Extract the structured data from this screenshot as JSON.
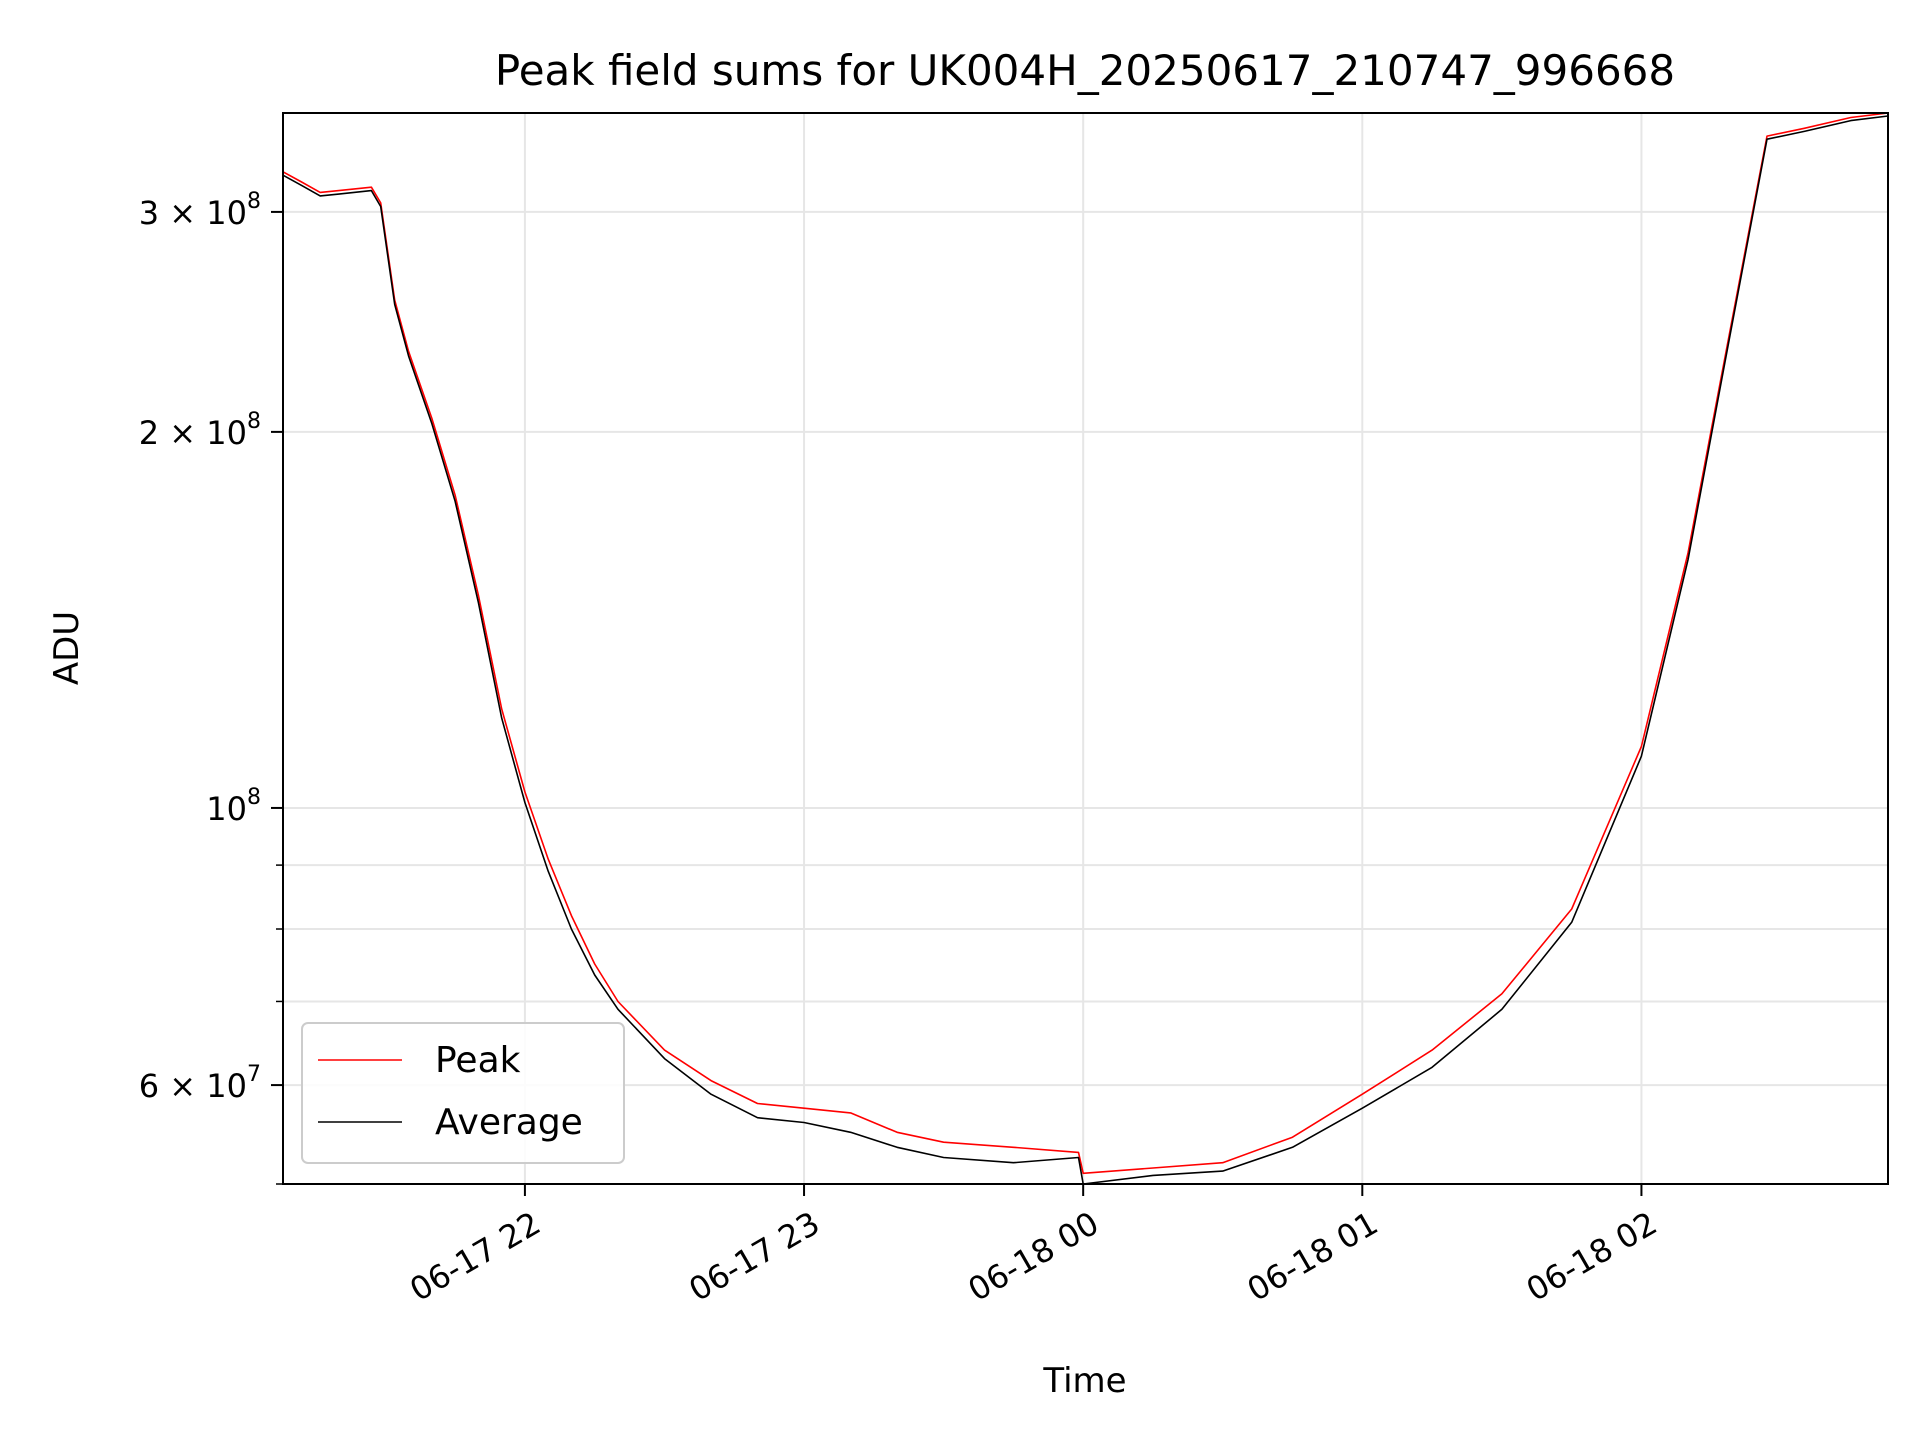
{
  "chart_data": {
    "type": "line",
    "title": "Peak field sums for UK004H_20250617_210747_996668",
    "xlabel": "Time",
    "ylabel": "ADU",
    "yscale": "log",
    "grid": true,
    "legend_position": "lower-left",
    "x_domain": [
      "2025-06-17T21:08",
      "2025-06-18T02:53"
    ],
    "ylim": [
      50000000,
      360000000
    ],
    "x_ticks": [
      {
        "t": "2025-06-17T22:00",
        "label": "06-17 22"
      },
      {
        "t": "2025-06-17T23:00",
        "label": "06-17 23"
      },
      {
        "t": "2025-06-18T00:00",
        "label": "06-18 00"
      },
      {
        "t": "2025-06-18T01:00",
        "label": "06-18 01"
      },
      {
        "t": "2025-06-18T02:00",
        "label": "06-18 02"
      }
    ],
    "y_ticks": [
      {
        "value": 300000000,
        "base": "3 × 10",
        "exp": "8"
      },
      {
        "value": 200000000,
        "base": "2 × 10",
        "exp": "8"
      },
      {
        "value": 100000000,
        "base": "10",
        "exp": "8"
      },
      {
        "value": 60000000,
        "base": "6 × 10",
        "exp": "7"
      }
    ],
    "y_minor_ticks": [
      50000000,
      70000000,
      80000000,
      90000000
    ],
    "series": [
      {
        "name": "Peak",
        "color": "#ff0000",
        "points": [
          [
            "2025-06-17T21:08",
            323000000
          ],
          [
            "2025-06-17T21:12",
            317000000
          ],
          [
            "2025-06-17T21:16",
            311000000
          ],
          [
            "2025-06-17T21:20",
            312000000
          ],
          [
            "2025-06-17T21:27",
            314000000
          ],
          [
            "2025-06-17T21:29",
            305000000
          ],
          [
            "2025-06-17T21:32",
            255000000
          ],
          [
            "2025-06-17T21:35",
            232000000
          ],
          [
            "2025-06-17T21:40",
            205000000
          ],
          [
            "2025-06-17T21:45",
            178000000
          ],
          [
            "2025-06-17T21:50",
            148000000
          ],
          [
            "2025-06-17T21:55",
            120000000
          ],
          [
            "2025-06-17T22:00",
            103000000
          ],
          [
            "2025-06-17T22:05",
            91000000
          ],
          [
            "2025-06-17T22:10",
            82000000
          ],
          [
            "2025-06-17T22:15",
            75000000
          ],
          [
            "2025-06-17T22:20",
            70000000
          ],
          [
            "2025-06-17T22:30",
            64000000
          ],
          [
            "2025-06-17T22:40",
            60500000
          ],
          [
            "2025-06-17T22:50",
            58000000
          ],
          [
            "2025-06-17T23:00",
            57500000
          ],
          [
            "2025-06-17T23:10",
            57000000
          ],
          [
            "2025-06-17T23:20",
            55000000
          ],
          [
            "2025-06-17T23:30",
            54000000
          ],
          [
            "2025-06-17T23:45",
            53500000
          ],
          [
            "2025-06-17T23:59",
            53000000
          ],
          [
            "2025-06-18T00:00",
            51000000
          ],
          [
            "2025-06-18T00:15",
            51500000
          ],
          [
            "2025-06-18T00:30",
            52000000
          ],
          [
            "2025-06-18T00:45",
            54500000
          ],
          [
            "2025-06-18T01:00",
            59000000
          ],
          [
            "2025-06-18T01:15",
            64000000
          ],
          [
            "2025-06-18T01:30",
            71000000
          ],
          [
            "2025-06-18T01:45",
            83000000
          ],
          [
            "2025-06-18T02:00",
            112000000
          ],
          [
            "2025-06-18T02:10",
            160000000
          ],
          [
            "2025-06-18T02:18",
            230000000
          ],
          [
            "2025-06-18T02:27",
            345000000
          ],
          [
            "2025-06-18T02:35",
            350000000
          ],
          [
            "2025-06-18T02:45",
            357000000
          ],
          [
            "2025-06-18T02:53",
            360000000
          ]
        ]
      },
      {
        "name": "Average",
        "color": "#000000",
        "points": [
          [
            "2025-06-17T21:08",
            321000000
          ],
          [
            "2025-06-17T21:12",
            315000000
          ],
          [
            "2025-06-17T21:16",
            309000000
          ],
          [
            "2025-06-17T21:20",
            310000000
          ],
          [
            "2025-06-17T21:27",
            312000000
          ],
          [
            "2025-06-17T21:29",
            303000000
          ],
          [
            "2025-06-17T21:32",
            253000000
          ],
          [
            "2025-06-17T21:35",
            230000000
          ],
          [
            "2025-06-17T21:40",
            203000000
          ],
          [
            "2025-06-17T21:45",
            176000000
          ],
          [
            "2025-06-17T21:50",
            146000000
          ],
          [
            "2025-06-17T21:55",
            118000000
          ],
          [
            "2025-06-17T22:00",
            101000000
          ],
          [
            "2025-06-17T22:05",
            89000000
          ],
          [
            "2025-06-17T22:10",
            80000000
          ],
          [
            "2025-06-17T22:15",
            73500000
          ],
          [
            "2025-06-17T22:20",
            69000000
          ],
          [
            "2025-06-17T22:30",
            63000000
          ],
          [
            "2025-06-17T22:40",
            59000000
          ],
          [
            "2025-06-17T22:50",
            56500000
          ],
          [
            "2025-06-17T23:00",
            56000000
          ],
          [
            "2025-06-17T23:10",
            55000000
          ],
          [
            "2025-06-17T23:20",
            53500000
          ],
          [
            "2025-06-17T23:30",
            52500000
          ],
          [
            "2025-06-17T23:45",
            52000000
          ],
          [
            "2025-06-17T23:59",
            52500000
          ],
          [
            "2025-06-18T00:00",
            50000000
          ],
          [
            "2025-06-18T00:15",
            50800000
          ],
          [
            "2025-06-18T00:30",
            51200000
          ],
          [
            "2025-06-18T00:45",
            53500000
          ],
          [
            "2025-06-18T01:00",
            57500000
          ],
          [
            "2025-06-18T01:15",
            62000000
          ],
          [
            "2025-06-18T01:30",
            69000000
          ],
          [
            "2025-06-18T01:45",
            81000000
          ],
          [
            "2025-06-18T02:00",
            110000000
          ],
          [
            "2025-06-18T02:10",
            158000000
          ],
          [
            "2025-06-18T02:18",
            228000000
          ],
          [
            "2025-06-18T02:27",
            343000000
          ],
          [
            "2025-06-18T02:35",
            348000000
          ],
          [
            "2025-06-18T02:45",
            355000000
          ],
          [
            "2025-06-18T02:53",
            358000000
          ]
        ]
      }
    ]
  }
}
